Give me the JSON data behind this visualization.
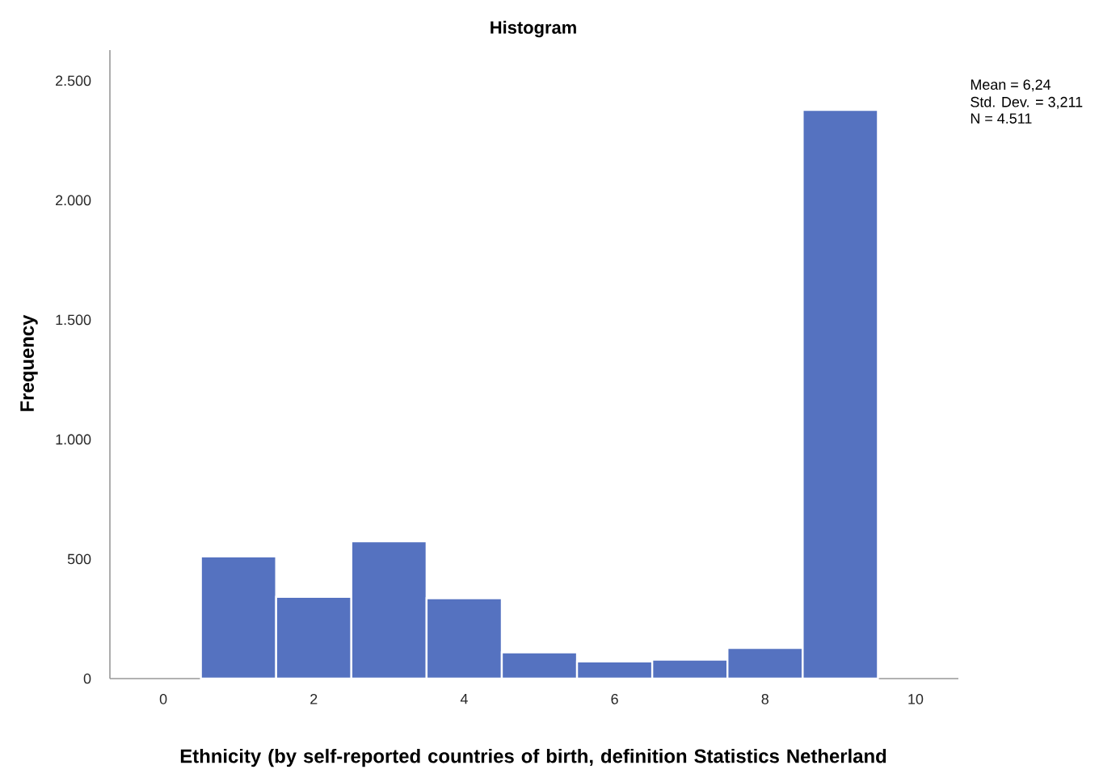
{
  "chart_data": {
    "type": "histogram",
    "title": "Histogram",
    "xlabel": "Ethnicity (by self-reported countries of birth, definition Statistics Netherland",
    "ylabel": "Frequency",
    "bins": [
      0.5,
      1.5,
      2.5,
      3.5,
      4.5,
      5.5,
      6.5,
      7.5,
      8.5,
      9.5
    ],
    "values": [
      511,
      342,
      574,
      336,
      110,
      72,
      79,
      128,
      2378
    ],
    "color": "#5572c0",
    "xlim": [
      -0.71,
      10.57
    ],
    "ylim": [
      0,
      2628
    ],
    "xticks": [
      0,
      2,
      4,
      6,
      8,
      10
    ],
    "yticks": [
      0,
      500,
      {
        "value": 1000,
        "label": "1.000"
      },
      {
        "value": 1500,
        "label": "1.500"
      },
      {
        "value": 2000,
        "label": "2.000"
      },
      {
        "value": 2500,
        "label": "2.500"
      }
    ],
    "annotations": [
      "Mean = 6,24",
      "Std. Dev. = 3,211",
      "N = 4.511"
    ],
    "grid": false
  }
}
